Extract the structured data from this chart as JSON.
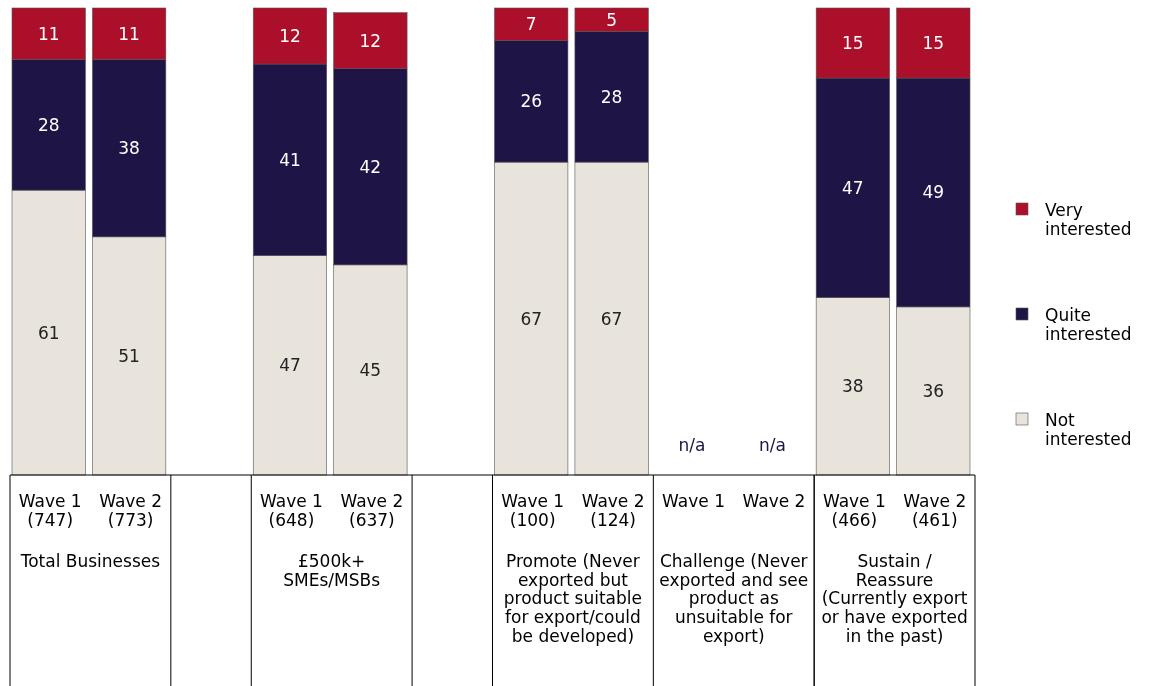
{
  "chart_data": {
    "type": "bar",
    "stacked": true,
    "ylim": [
      0,
      100
    ],
    "legend": "right",
    "categories": [
      "Wave 1 (747)",
      "Wave 2 (773)",
      null,
      "Wave 1 (648)",
      "Wave 2 (637)",
      null,
      "Wave 1 (100)",
      "Wave 2 (124)",
      "Wave 1",
      "Wave 2",
      "Wave 1 (466)",
      "Wave 2 (461)"
    ],
    "series": [
      {
        "name": "Not interested",
        "color": "#e8e4dc",
        "values": [
          61,
          51,
          null,
          47,
          45,
          null,
          67,
          67,
          null,
          null,
          38,
          36
        ],
        "value_labels": [
          "61",
          "51",
          null,
          "47",
          "45",
          null,
          "67",
          "67",
          "n/a",
          "n/a",
          "38",
          "36"
        ]
      },
      {
        "name": "Quite interested",
        "color": "#1e1446",
        "values": [
          28,
          38,
          null,
          41,
          42,
          null,
          26,
          28,
          null,
          null,
          47,
          49
        ],
        "value_labels": [
          "28",
          "38",
          null,
          "41",
          "42",
          null,
          "26",
          "28",
          null,
          null,
          "47",
          "49"
        ]
      },
      {
        "name": "Very interested",
        "color": "#ab0f2a",
        "values": [
          11,
          11,
          null,
          12,
          12,
          null,
          7,
          5,
          null,
          null,
          15,
          15
        ],
        "value_labels": [
          "11",
          "11",
          null,
          "12",
          "12",
          null,
          "7",
          "5",
          null,
          null,
          "15",
          "15"
        ]
      }
    ],
    "annotations": [
      "Total Businesses",
      "£500k+ SMEs/MSBs",
      "Promote (Never exported but product suitable for export/could be developed)",
      "Challenge (Never exported and see product as unsuitable for export)",
      "Sustain / Reassure (Currently export or have exported in the past)"
    ]
  }
}
